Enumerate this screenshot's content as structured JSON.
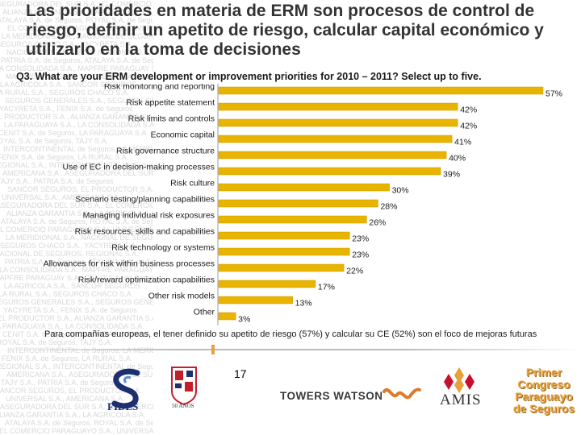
{
  "title": "Las prioridades en materia de ERM son procesos de control de riesgo, definir un apetito de riesgo, calcular capital económico y utilizarlo en la toma de decisiones",
  "question": "Q3. What are your ERM development or improvement priorities for 2010 – 2011? Select up to five.",
  "footnote": "Para compañías europeas, el tener definido su apetito de riesgo (57%) y calcular su CE (52%) son el foco de mejoras futuras",
  "page_number": "17",
  "background_names": [
    "ASEGURADORA DEL SUR S.A.",
    "ALIANZA GARANTIA S.A.",
    "ATALAYA S.A. de Seguros",
    "EL COMERCIO PARAGUAYO S.A.",
    "LA MERIDIONAL S.A.",
    "SEGUROS CHACO S.A.",
    "NACIONAL DE SEGUROS",
    "PATRIA S.A. de Seguros",
    "LA CONSOLIDADA S.A.",
    "MAPFRE PARAGUAY S.A.",
    "LA AGRICOLA S.A.",
    "LA RURAL S.A.",
    "SEGUROS GENERALES S.A.",
    "YACYRETA S.A.",
    "EL PRODUCTOR S.A.",
    "LA PARAGUAYA S.A.",
    "CENIT S.A. de Seguros",
    "ROYAL S.A. de Seguros",
    "INTERCONTINENTAL de Seguros",
    "FENIX S.A. de Seguros",
    "REGIONAL S.A.",
    "AMERICANA S.A.",
    "TAJY S.A.",
    "SANCOR SEGUROS",
    "UNIVERSAL S.A."
  ],
  "logos": {
    "fides": "FIDES",
    "anos": "50 AÑOS",
    "towers_watson": "TOWERS WATSON",
    "amis": "AMIS",
    "congreso": [
      "Primer",
      "Congreso",
      "Paraguayo",
      "de Seguros"
    ]
  },
  "colors": {
    "bar": "#e8b400",
    "bar_edge": "#c99a00",
    "text": "#1a1a1a"
  },
  "chart_data": {
    "type": "bar",
    "orientation": "horizontal",
    "categories": [
      "Risk monitoring and reporting",
      "Risk appetite statement",
      "Risk limits and controls",
      "Economic capital",
      "Risk governance structure",
      "Use of EC in decision-making processes",
      "Risk culture",
      "Scenario testing/planning capabilities",
      "Managing individual risk exposures",
      "Risk resources, skills and capabilities",
      "Risk technology or systems",
      "Allowances for risk within business processes",
      "Risk/reward optimization capabilities",
      "Other risk models",
      "Other"
    ],
    "values": [
      57,
      42,
      42,
      41,
      40,
      39,
      30,
      28,
      26,
      23,
      23,
      22,
      17,
      13,
      3
    ],
    "value_labels": [
      "57%",
      "42%",
      "42%",
      "41%",
      "40%",
      "39%",
      "30%",
      "28%",
      "26%",
      "23%",
      "23%",
      "22%",
      "17%",
      "13%",
      "3%"
    ],
    "xlim": [
      0,
      57
    ],
    "grid": false,
    "legend": "none"
  }
}
